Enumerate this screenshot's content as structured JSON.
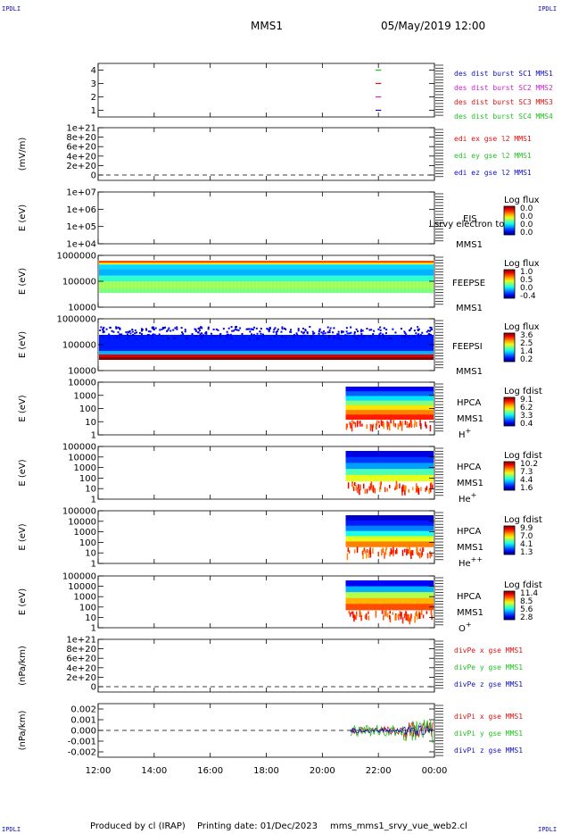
{
  "corner_tags": {
    "tl": "IPDLI",
    "tr": "IPDLI",
    "bl": "IPDLI",
    "br": "IPDLI"
  },
  "header": {
    "spacecraft": "MMS1",
    "datetime": "05/May/2019 12:00"
  },
  "footer": {
    "produced": "Produced by cl (IRAP)",
    "printed": "Printing date: 01/Dec/2023",
    "file": "mms_mms1_srvy_vue_web2.cl"
  },
  "time_axis": {
    "ticks": [
      "12:00",
      "14:00",
      "16:00",
      "18:00",
      "20:00",
      "22:00",
      "00:00"
    ]
  },
  "chart_data": [
    {
      "type": "line",
      "name": "burst intervals",
      "ylabel": "",
      "yticks": [
        "4",
        "3",
        "2",
        "1"
      ],
      "ylim": [
        0.5,
        4.5
      ],
      "series": [
        {
          "name": "des dist burst SC1 MMS1",
          "color": "#1010c0",
          "y": 1,
          "t": [
            21.9,
            22.1
          ]
        },
        {
          "name": "des dist burst SC2 MMS2",
          "color": "#cc22cc",
          "y": 2,
          "t": [
            21.9,
            22.1
          ]
        },
        {
          "name": "des dist burst SC3 MMS3",
          "color": "#dd1010",
          "y": 3,
          "t": [
            21.9,
            22.1
          ]
        },
        {
          "name": "des dist burst SC4 MMS4",
          "color": "#20c020",
          "y": 4,
          "t": [
            21.9,
            22.1
          ]
        }
      ]
    },
    {
      "type": "line",
      "name": "EDI E field",
      "ylabel": "(mV/m)",
      "yticks": [
        "1e+21",
        "8e+20",
        "6e+20",
        "4e+20",
        "2e+20",
        "0"
      ],
      "ylim": [
        0,
        1e+21
      ],
      "series": [
        {
          "name": "edi ex gse l2 MMS1",
          "color": "#dd1010"
        },
        {
          "name": "edi ey gse l2 MMS1",
          "color": "#20c020"
        },
        {
          "name": "edi ez gse l2 MMS1",
          "color": "#1010c0"
        }
      ]
    },
    {
      "type": "heatmap",
      "name": "EIS",
      "ylabel": "E (eV)",
      "yticks": [
        "1e+07",
        "1e+06",
        "1e+05",
        "1e+04"
      ],
      "ylim": [
        10000.0,
        10000000.0
      ],
      "labels": [
        "EIS",
        "MMS1"
      ],
      "overlay": "l srvy electron to",
      "colorbar": {
        "title": "Log flux",
        "ticks": [
          "0.0",
          "0.0",
          "0.0",
          "0.0"
        ]
      }
    },
    {
      "type": "heatmap",
      "name": "FEEPS electrons",
      "ylabel": "E (eV)",
      "yticks": [
        "1000000",
        "100000",
        "10000"
      ],
      "ylim": [
        10000.0,
        1000000.0
      ],
      "labels": [
        "FEEPSE",
        "MMS1"
      ],
      "colorbar": {
        "title": "Log flux",
        "ticks": [
          "1.0",
          "0.5",
          "0.0",
          "-0.4"
        ]
      }
    },
    {
      "type": "heatmap",
      "name": "FEEPS ions",
      "ylabel": "E (eV)",
      "yticks": [
        "1000000",
        "100000",
        "10000"
      ],
      "ylim": [
        10000.0,
        1000000.0
      ],
      "labels": [
        "FEEPSI",
        "MMS1"
      ],
      "colorbar": {
        "title": "Log flux",
        "ticks": [
          "3.6",
          "2.5",
          "1.4",
          "0.2"
        ]
      }
    },
    {
      "type": "heatmap",
      "name": "HPCA H+",
      "ylabel": "E (eV)",
      "yticks": [
        "10000",
        "1000",
        "100",
        "10",
        "1"
      ],
      "ylim": [
        1,
        10000.0
      ],
      "labels": [
        "HPCA",
        "MMS1",
        "H+"
      ],
      "data_start": "20:50",
      "colorbar": {
        "title": "Log fdist",
        "ticks": [
          "9.1",
          "6.2",
          "3.3",
          "0.4"
        ]
      }
    },
    {
      "type": "heatmap",
      "name": "HPCA He+",
      "ylabel": "E (eV)",
      "yticks": [
        "100000",
        "10000",
        "1000",
        "100",
        "10",
        "1"
      ],
      "ylim": [
        1,
        100000.0
      ],
      "labels": [
        "HPCA",
        "MMS1",
        "He+"
      ],
      "data_start": "20:50",
      "colorbar": {
        "title": "Log fdist",
        "ticks": [
          "10.2",
          "7.3",
          "4.4",
          "1.6"
        ]
      }
    },
    {
      "type": "heatmap",
      "name": "HPCA He++",
      "ylabel": "E (eV)",
      "yticks": [
        "100000",
        "10000",
        "1000",
        "100",
        "10",
        "1"
      ],
      "ylim": [
        1,
        100000.0
      ],
      "labels": [
        "HPCA",
        "MMS1",
        "He++"
      ],
      "data_start": "20:50",
      "colorbar": {
        "title": "Log fdist",
        "ticks": [
          "9.9",
          "7.0",
          "4.1",
          "1.3"
        ]
      }
    },
    {
      "type": "heatmap",
      "name": "HPCA O+",
      "ylabel": "E (eV)",
      "yticks": [
        "100000",
        "10000",
        "1000",
        "100",
        "10",
        "1"
      ],
      "ylim": [
        1,
        100000.0
      ],
      "labels": [
        "HPCA",
        "MMS1",
        "O+"
      ],
      "data_start": "20:50",
      "colorbar": {
        "title": "Log fdist",
        "ticks": [
          "11.4",
          "8.5",
          "5.6",
          "2.8"
        ]
      }
    },
    {
      "type": "line",
      "name": "divPe",
      "ylabel": "(nPa/km)",
      "yticks": [
        "1e+21",
        "8e+20",
        "6e+20",
        "4e+20",
        "2e+20",
        "0"
      ],
      "ylim": [
        0,
        1e+21
      ],
      "series": [
        {
          "name": "divPe x gse MMS1",
          "color": "#dd1010"
        },
        {
          "name": "divPe y gse MMS1",
          "color": "#20c020"
        },
        {
          "name": "divPe z gse MMS1",
          "color": "#1010c0"
        }
      ]
    },
    {
      "type": "line",
      "name": "divPi",
      "ylabel": "(nPa/km)",
      "yticks": [
        "0.002",
        "0.001",
        "0.000",
        "-0.001",
        "-0.002"
      ],
      "ylim": [
        -0.0025,
        0.0025
      ],
      "data_start": "21:00",
      "series": [
        {
          "name": "divPi x gse MMS1",
          "color": "#dd1010"
        },
        {
          "name": "divPi y gse MMS1",
          "color": "#20c020"
        },
        {
          "name": "divPi z gse MMS1",
          "color": "#1010c0"
        }
      ]
    }
  ]
}
